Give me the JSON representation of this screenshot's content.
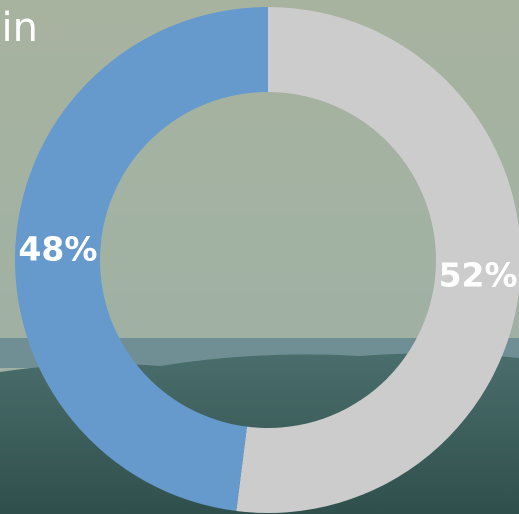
{
  "chart_data": {
    "type": "pie",
    "title": "in",
    "values": [
      52,
      48
    ],
    "value_labels": [
      "52%",
      "48%"
    ],
    "colors": [
      "#cccccc",
      "#6699cc"
    ]
  }
}
